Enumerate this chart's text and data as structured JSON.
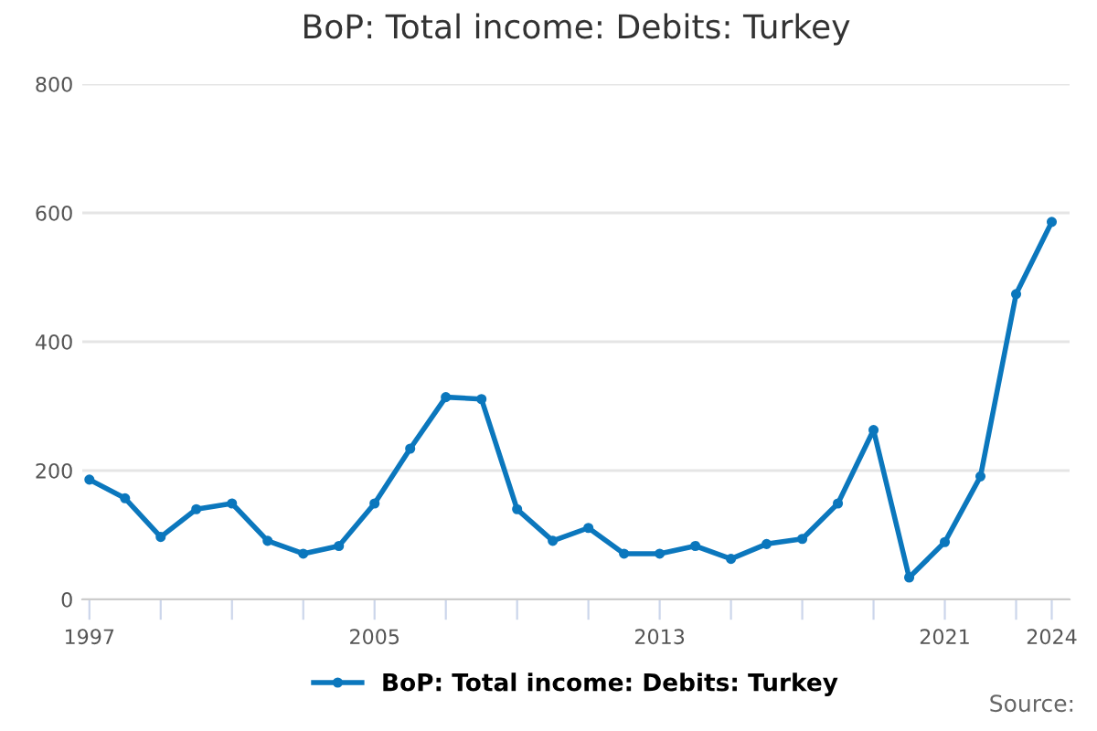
{
  "chart_data": {
    "type": "line",
    "title": "BoP: Total income: Debits: Turkey",
    "x": [
      1997,
      1998,
      1999,
      2000,
      2001,
      2002,
      2003,
      2004,
      2005,
      2006,
      2007,
      2008,
      2009,
      2010,
      2011,
      2012,
      2013,
      2014,
      2015,
      2016,
      2017,
      2018,
      2019,
      2020,
      2021,
      2022,
      2023,
      2024
    ],
    "series": [
      {
        "name": "BoP: Total income: Debits: Turkey",
        "color": "#0b77bd",
        "values": [
          186,
          157,
          97,
          140,
          149,
          91,
          71,
          83,
          149,
          234,
          314,
          311,
          140,
          91,
          111,
          71,
          71,
          83,
          63,
          86,
          94,
          149,
          263,
          34,
          89,
          191,
          474,
          586
        ]
      }
    ],
    "xlim": [
      1996.8,
      2024.5
    ],
    "xticks": [
      1997,
      {
        "value": 1999,
        "label": null
      },
      {
        "value": 2001,
        "label": null
      },
      {
        "value": 2003,
        "label": null
      },
      2005,
      {
        "value": 2007,
        "label": null
      },
      {
        "value": 2009,
        "label": null
      },
      {
        "value": 2011,
        "label": null
      },
      2013,
      {
        "value": 2015,
        "label": null
      },
      {
        "value": 2017,
        "label": null
      },
      {
        "value": 2019,
        "label": null
      },
      2021,
      {
        "value": 2023,
        "label": null
      },
      2024
    ],
    "ylim": [
      0,
      800
    ],
    "yticks": [
      0,
      200,
      400,
      600,
      800
    ],
    "grid": "y",
    "legend": "bottom",
    "marker": "circle",
    "line_style": "solid",
    "annotations": [
      "Source:"
    ]
  }
}
